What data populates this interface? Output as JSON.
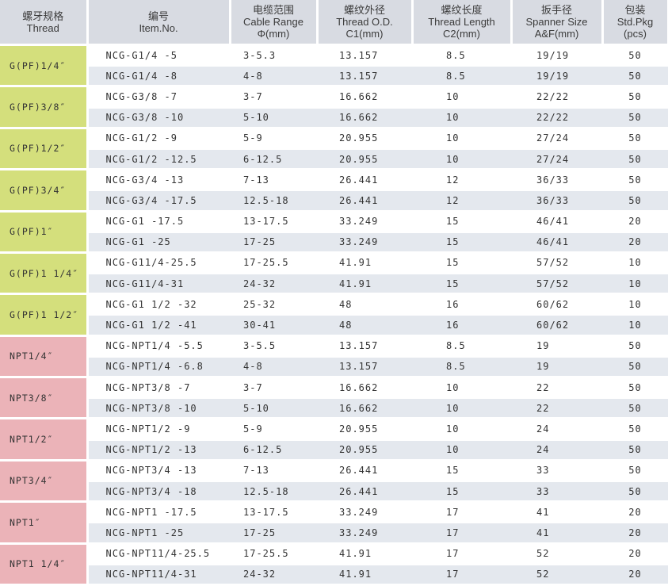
{
  "headers": [
    {
      "cn": "螺牙规格",
      "en": [
        "Thread"
      ]
    },
    {
      "cn": "编号",
      "en": [
        "Item.No."
      ]
    },
    {
      "cn": "电缆范围",
      "en": [
        "Cable Range",
        "Φ(mm)"
      ]
    },
    {
      "cn": "螺纹外径",
      "en": [
        "Thread O.D.",
        "C1(mm)"
      ]
    },
    {
      "cn": "螺纹长度",
      "en": [
        "Thread Length",
        "C2(mm)"
      ]
    },
    {
      "cn": "扳手径",
      "en": [
        "Spanner Size",
        "A&F(mm)"
      ]
    },
    {
      "cn": "包装",
      "en": [
        "Std.Pkg",
        "(pcs)"
      ]
    }
  ],
  "colors": {
    "header": "#d8dbe2",
    "g_thread": "#d4df7c",
    "npt_thread": "#ebb3b8",
    "alt_row": "#e4e8ee"
  },
  "groups": [
    {
      "thread": "G(PF)1/4″",
      "type": "g",
      "rows": [
        [
          "NCG-G1/4 -5",
          "3-5.3",
          "13.157",
          "8.5",
          "19/19",
          "50"
        ],
        [
          "NCG-G1/4 -8",
          "4-8",
          "13.157",
          "8.5",
          "19/19",
          "50"
        ]
      ]
    },
    {
      "thread": "G(PF)3/8″",
      "type": "g",
      "rows": [
        [
          "NCG-G3/8 -7",
          "3-7",
          "16.662",
          "10",
          "22/22",
          "50"
        ],
        [
          "NCG-G3/8 -10",
          "5-10",
          "16.662",
          "10",
          "22/22",
          "50"
        ]
      ]
    },
    {
      "thread": "G(PF)1/2″",
      "type": "g",
      "rows": [
        [
          "NCG-G1/2 -9",
          "5-9",
          "20.955",
          "10",
          "27/24",
          "50"
        ],
        [
          "NCG-G1/2 -12.5",
          "6-12.5",
          "20.955",
          "10",
          "27/24",
          "50"
        ]
      ]
    },
    {
      "thread": "G(PF)3/4″",
      "type": "g",
      "rows": [
        [
          "NCG-G3/4 -13",
          "7-13",
          "26.441",
          "12",
          "36/33",
          "50"
        ],
        [
          "NCG-G3/4 -17.5",
          "12.5-18",
          "26.441",
          "12",
          "36/33",
          "50"
        ]
      ]
    },
    {
      "thread": "G(PF)1″",
      "type": "g",
      "rows": [
        [
          "NCG-G1 -17.5",
          "13-17.5",
          "33.249",
          "15",
          "46/41",
          "20"
        ],
        [
          "NCG-G1 -25",
          "17-25",
          "33.249",
          "15",
          "46/41",
          "20"
        ]
      ]
    },
    {
      "thread": "G(PF)1 1/4″",
      "type": "g",
      "rows": [
        [
          "NCG-G11/4-25.5",
          "17-25.5",
          "41.91",
          "15",
          "57/52",
          "10"
        ],
        [
          "NCG-G11/4-31",
          "24-32",
          "41.91",
          "15",
          "57/52",
          "10"
        ]
      ]
    },
    {
      "thread": "G(PF)1 1/2″",
      "type": "g",
      "rows": [
        [
          "NCG-G1 1/2 -32",
          "25-32",
          "48",
          "16",
          "60/62",
          "10"
        ],
        [
          "NCG-G1 1/2 -41",
          "30-41",
          "48",
          "16",
          "60/62",
          "10"
        ]
      ]
    },
    {
      "thread": "NPT1/4″",
      "type": "n",
      "rows": [
        [
          "NCG-NPT1/4 -5.5",
          "3-5.5",
          "13.157",
          "8.5",
          "19",
          "50"
        ],
        [
          "NCG-NPT1/4 -6.8",
          "4-8",
          "13.157",
          "8.5",
          "19",
          "50"
        ]
      ]
    },
    {
      "thread": "NPT3/8″",
      "type": "n",
      "rows": [
        [
          "NCG-NPT3/8 -7",
          "3-7",
          "16.662",
          "10",
          "22",
          "50"
        ],
        [
          "NCG-NPT3/8 -10",
          "5-10",
          "16.662",
          "10",
          "22",
          "50"
        ]
      ]
    },
    {
      "thread": "NPT1/2″",
      "type": "n",
      "rows": [
        [
          "NCG-NPT1/2 -9",
          "5-9",
          "20.955",
          "10",
          "24",
          "50"
        ],
        [
          "NCG-NPT1/2 -13",
          "6-12.5",
          "20.955",
          "10",
          "24",
          "50"
        ]
      ]
    },
    {
      "thread": "NPT3/4″",
      "type": "n",
      "rows": [
        [
          "NCG-NPT3/4 -13",
          "7-13",
          "26.441",
          "15",
          "33",
          "50"
        ],
        [
          "NCG-NPT3/4 -18",
          "12.5-18",
          "26.441",
          "15",
          "33",
          "50"
        ]
      ]
    },
    {
      "thread": "NPT1″",
      "type": "n",
      "rows": [
        [
          "NCG-NPT1 -17.5",
          "13-17.5",
          "33.249",
          "17",
          "41",
          "20"
        ],
        [
          "NCG-NPT1 -25",
          "17-25",
          "33.249",
          "17",
          "41",
          "20"
        ]
      ]
    },
    {
      "thread": "NPT1 1/4″",
      "type": "n",
      "rows": [
        [
          "NCG-NPT11/4-25.5",
          "17-25.5",
          "41.91",
          "17",
          "52",
          "20"
        ],
        [
          "NCG-NPT11/4-31",
          "24-32",
          "41.91",
          "17",
          "52",
          "20"
        ]
      ]
    }
  ]
}
